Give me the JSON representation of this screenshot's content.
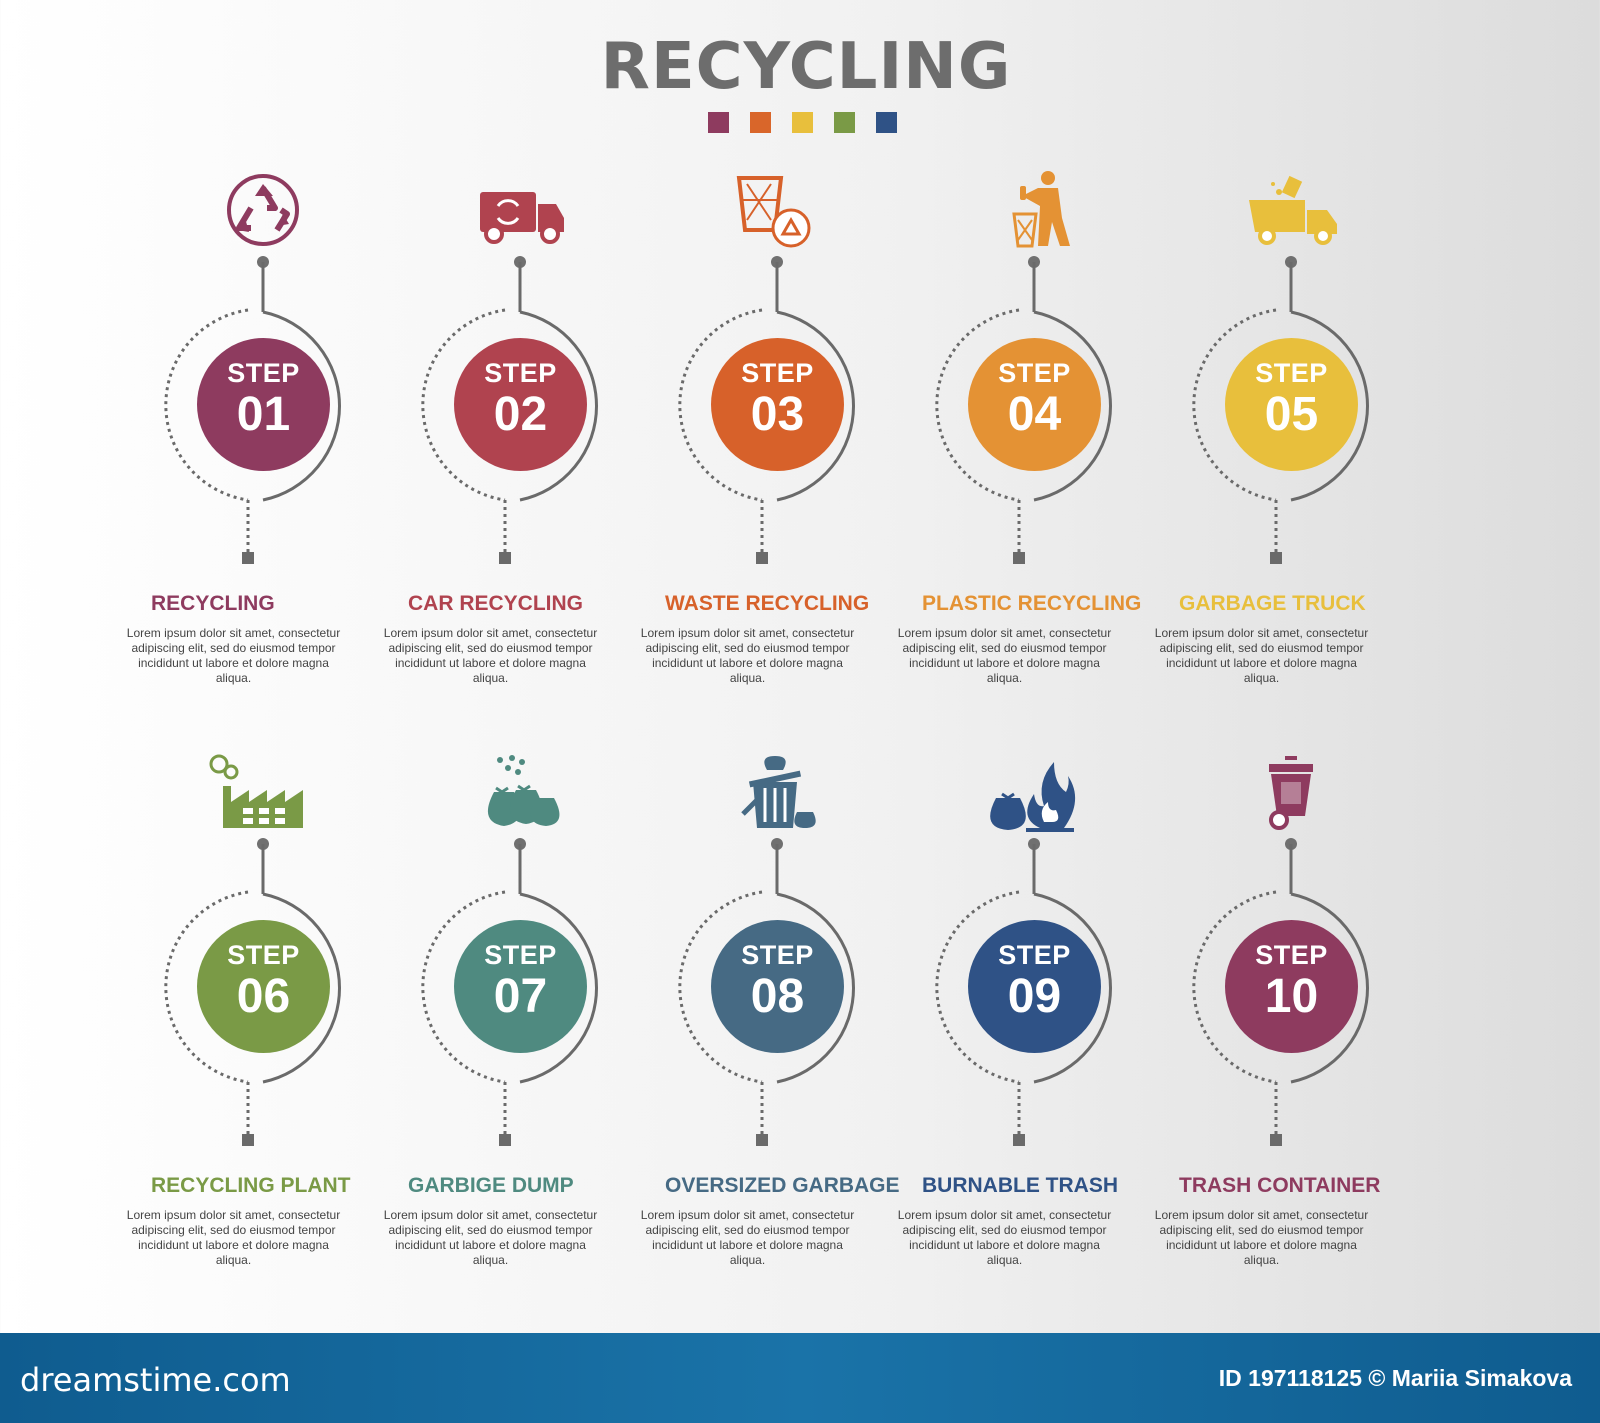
{
  "title": "RECYCLING",
  "palette": [
    "#8e3b5f",
    "#d9662a",
    "#e8bf3c",
    "#7a9a46",
    "#2f5286"
  ],
  "steps": [
    {
      "word": "STEP",
      "num": "01",
      "label": "RECYCLING",
      "color": "#8e3b5f",
      "icon": "recycle-icon",
      "text": "Lorem ipsum dolor sit amet, consectetur adipiscing elit, sed do eiusmod tempor incididunt ut labore et dolore magna aliqua."
    },
    {
      "word": "STEP",
      "num": "02",
      "label": "CAR RECYCLING",
      "color": "#b0434f",
      "icon": "recycling-truck-icon",
      "text": "Lorem ipsum dolor sit amet, consectetur adipiscing elit, sed do eiusmod tempor incididunt ut labore et dolore magna aliqua."
    },
    {
      "word": "STEP",
      "num": "03",
      "label": "WASTE RECYCLING",
      "color": "#d7612a",
      "icon": "waste-basket-recycle-icon",
      "text": "Lorem ipsum dolor sit amet, consectetur adipiscing elit, sed do eiusmod tempor incididunt ut labore et dolore magna aliqua."
    },
    {
      "word": "STEP",
      "num": "04",
      "label": "PLASTIC RECYCLING",
      "color": "#e49234",
      "icon": "person-throwing-trash-icon",
      "text": "Lorem ipsum dolor sit amet, consectetur adipiscing elit, sed do eiusmod tempor incididunt ut labore et dolore magna aliqua."
    },
    {
      "word": "STEP",
      "num": "05",
      "label": "GARBAGE TRUCK",
      "color": "#e8bf3c",
      "icon": "garbage-truck-icon",
      "text": "Lorem ipsum dolor sit amet, consectetur adipiscing elit, sed do eiusmod tempor incididunt ut labore et dolore magna aliqua."
    },
    {
      "word": "STEP",
      "num": "06",
      "label": "RECYCLING PLANT",
      "color": "#7a9a46",
      "icon": "factory-icon",
      "text": "Lorem ipsum dolor sit amet, consectetur adipiscing elit, sed do eiusmod tempor incididunt ut labore et dolore magna aliqua."
    },
    {
      "word": "STEP",
      "num": "07",
      "label": "GARBIGE DUMP",
      "color": "#4f8a80",
      "icon": "garbage-bags-icon",
      "text": "Lorem ipsum dolor sit amet, consectetur adipiscing elit, sed do eiusmod tempor incididunt ut labore et dolore magna aliqua."
    },
    {
      "word": "STEP",
      "num": "08",
      "label": "OVERSIZED GARBAGE",
      "color": "#466a84",
      "icon": "trash-can-bags-icon",
      "text": "Lorem ipsum dolor sit amet, consectetur adipiscing elit, sed do eiusmod tempor incididunt ut labore et dolore magna aliqua."
    },
    {
      "word": "STEP",
      "num": "09",
      "label": "BURNABLE TRASH",
      "color": "#2f5286",
      "icon": "burning-trash-icon",
      "text": "Lorem ipsum dolor sit amet, consectetur adipiscing elit, sed do eiusmod tempor incididunt ut labore et dolore magna aliqua."
    },
    {
      "word": "STEP",
      "num": "10",
      "label": "TRASH CONTAINER",
      "color": "#8e3b5f",
      "icon": "wheelie-bin-icon",
      "text": "Lorem ipsum dolor sit amet, consectetur adipiscing elit, sed do eiusmod tempor incididunt ut labore et dolore magna aliqua."
    }
  ],
  "footer": {
    "brand": "dreamstime.com",
    "credit": "ID 197118125 © Mariia Simakova"
  }
}
